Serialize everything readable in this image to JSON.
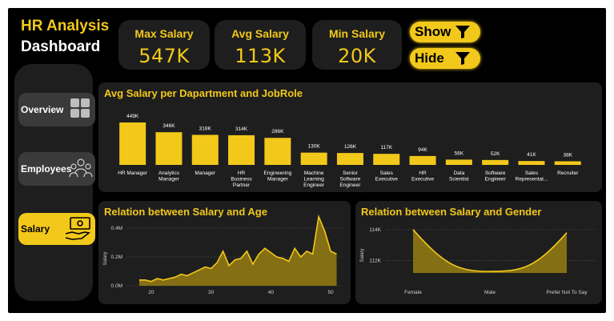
{
  "header": {
    "title_line1": "HR Analysis",
    "title_line2": "Dashboard"
  },
  "kpis": [
    {
      "label": "Max Salary",
      "value": "547K"
    },
    {
      "label": "Avg Salary",
      "value": "113K"
    },
    {
      "label": "Min Salary",
      "value": "20K"
    }
  ],
  "buttons": {
    "show_label": "Show",
    "hide_label": "Hide"
  },
  "nav": [
    {
      "label": "Overview",
      "icon": "grid-icon",
      "active": false
    },
    {
      "label": "Employees",
      "icon": "people-icon",
      "active": false
    },
    {
      "label": "Salary",
      "icon": "money-hand-icon",
      "active": true
    }
  ],
  "colors": {
    "accent": "#f2c81a",
    "panel": "#1e1e1e",
    "background": "#000000"
  },
  "chart_data": [
    {
      "type": "bar",
      "title": "Avg Salary per Dapartment and JobRole",
      "categories": [
        "HR Manager",
        "Analytics Manager",
        "Manager",
        "HR Business Partner",
        "Engineering Manager",
        "Machine Learning Engineer",
        "Senior Software Engineer",
        "Sales Executive",
        "HR Executive",
        "Data Scientist",
        "Software Engineer",
        "Sales Representat...",
        "Recruiter"
      ],
      "values": [
        449,
        346,
        318,
        314,
        286,
        130,
        126,
        117,
        94,
        56,
        52,
        41,
        38
      ],
      "data_labels": [
        "449K",
        "346K",
        "318K",
        "314K",
        "286K",
        "130K",
        "126K",
        "117K",
        "94K",
        "56K",
        "52K",
        "41K",
        "38K"
      ]
    },
    {
      "type": "area",
      "title": "Relation between Salary and Age",
      "ylabel": "Salary",
      "x": [
        18,
        19,
        20,
        21,
        22,
        23,
        24,
        25,
        26,
        27,
        28,
        29,
        30,
        31,
        32,
        33,
        34,
        35,
        36,
        37,
        38,
        39,
        40,
        41,
        42,
        43,
        44,
        45,
        46,
        47,
        48,
        49,
        50,
        51
      ],
      "y": [
        0.04,
        0.04,
        0.03,
        0.05,
        0.04,
        0.05,
        0.06,
        0.08,
        0.07,
        0.09,
        0.11,
        0.13,
        0.12,
        0.16,
        0.24,
        0.14,
        0.18,
        0.19,
        0.24,
        0.15,
        0.22,
        0.26,
        0.23,
        0.2,
        0.19,
        0.17,
        0.26,
        0.2,
        0.24,
        0.22,
        0.48,
        0.38,
        0.24,
        0.22
      ],
      "xticks": [
        "20",
        "30",
        "40",
        "50"
      ],
      "yticks": [
        "0.0M",
        "0.2M",
        "0.4M"
      ],
      "xlim": [
        16,
        52
      ],
      "ylim": [
        0,
        0.4
      ]
    },
    {
      "type": "area",
      "title": "Relation between Salary and Gender",
      "ylabel": "Salary",
      "categories": [
        "Female",
        "Male",
        "Prefer Not To Say"
      ],
      "values": [
        114.0,
        111.3,
        113.8
      ],
      "yticks": [
        "114K",
        "112K"
      ],
      "ylim": [
        111.2,
        114.3
      ]
    }
  ]
}
